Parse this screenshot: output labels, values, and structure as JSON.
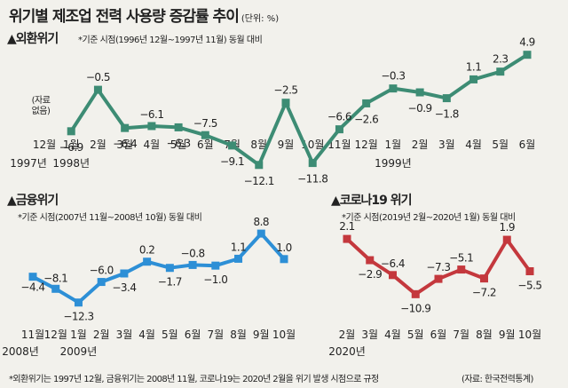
{
  "header": {
    "title": "위기별 제조업 전력 사용량 증감률 추이",
    "unit": "(단위: %)"
  },
  "footer": {
    "footnote": "*외환위기는 1997년 12월, 금융위기는 2008년 11월, 코로나19는 2020년 2월을 위기 발생 시점으로 규정",
    "source": "(자료: 한국전력통계)"
  },
  "colors": {
    "background": "#f2f1ec",
    "asian_crisis_line": "#3d8c74",
    "financial_crisis_line": "#2d8fd6",
    "covid_line": "#c4383d"
  },
  "chart_data": [
    {
      "type": "line",
      "title": "외환위기",
      "subtitle": "*기준 시점(1996년 12월~1997년 11월) 동월 대비",
      "categories": [
        "12월",
        "1월",
        "2월",
        "3월",
        "4월",
        "5월",
        "6월",
        "7월",
        "8월",
        "9월",
        "10월",
        "11월",
        "12월",
        "1월",
        "2월",
        "3월",
        "4월",
        "5월",
        "6월"
      ],
      "year_labels": [
        {
          "index": 0,
          "text": "1997년"
        },
        {
          "index": 1,
          "text": "1998년"
        },
        {
          "index": 13,
          "text": "1999년"
        }
      ],
      "missing_note": "(자료 없음)",
      "series": [
        {
          "values": [
            null,
            -6.9,
            -0.5,
            -6.4,
            -6.1,
            -6.3,
            -7.5,
            -9.1,
            -12.1,
            -2.5,
            -11.8,
            -6.6,
            -2.6,
            -0.3,
            -0.9,
            -1.8,
            1.1,
            2.3,
            4.9
          ]
        }
      ],
      "ylim": [
        -13.5,
        6.5
      ]
    },
    {
      "type": "line",
      "title": "금융위기",
      "subtitle": "*기준 시점(2007년 11월~2008년 10월) 동월 대비",
      "categories": [
        "11월",
        "12월",
        "1월",
        "2월",
        "3월",
        "4월",
        "5월",
        "6월",
        "7월",
        "8월",
        "9월",
        "10월"
      ],
      "year_labels": [
        {
          "index": 0,
          "text": "2008년"
        },
        {
          "index": 2,
          "text": "2009년"
        }
      ],
      "series": [
        {
          "values": [
            -4.4,
            -8.1,
            -12.3,
            -6.0,
            -3.4,
            0.2,
            -1.7,
            -0.8,
            -1.0,
            1.1,
            8.8,
            1.0
          ]
        }
      ],
      "ylim": [
        -14,
        11
      ]
    },
    {
      "type": "line",
      "title": "코로나19 위기",
      "subtitle": "*기준 시점(2019년 2월~2020년 1월) 동월 대비",
      "categories": [
        "2월",
        "3월",
        "4월",
        "5월",
        "6월",
        "7월",
        "8월",
        "9월",
        "10월"
      ],
      "year_labels": [
        {
          "index": 0,
          "text": "2020년"
        }
      ],
      "series": [
        {
          "values": [
            2.1,
            -2.9,
            -6.4,
            -10.9,
            -7.3,
            -5.1,
            -7.2,
            1.9,
            -5.5
          ]
        }
      ],
      "ylim": [
        -12.5,
        4
      ]
    }
  ]
}
